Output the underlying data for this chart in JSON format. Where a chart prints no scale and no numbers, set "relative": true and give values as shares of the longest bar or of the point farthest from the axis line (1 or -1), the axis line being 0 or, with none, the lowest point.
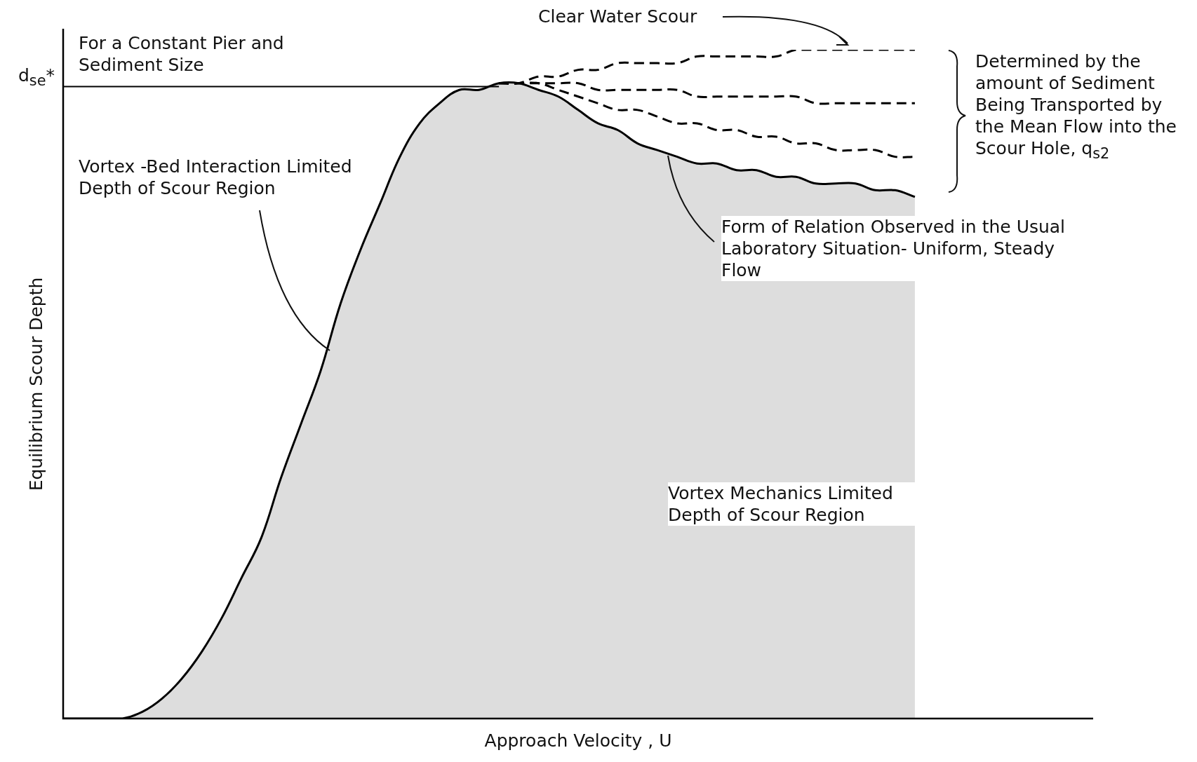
{
  "chart_data": {
    "type": "line",
    "relative": true,
    "legend": false,
    "grid": false,
    "marker": "none",
    "xlabel": "Approach Velocity , U",
    "ylabel": "Equilibrium Scour Depth",
    "categories": [
      null,
      null,
      null,
      null,
      null,
      null,
      null,
      null,
      null,
      null,
      null,
      null,
      null,
      null,
      null,
      null,
      null,
      null,
      null,
      null,
      null,
      null,
      null,
      null,
      null,
      null,
      null,
      null,
      null,
      null,
      null,
      null,
      null,
      null,
      null,
      null,
      null,
      null,
      null,
      null,
      null,
      null,
      null,
      null,
      null,
      null,
      null,
      null,
      null,
      null,
      null,
      null,
      null
    ],
    "series": [
      {
        "type": "area",
        "color": "#000000",
        "line_style": "solid",
        "values": [
          0,
          0,
          0,
          0,
          0.01,
          0.03,
          0.06,
          0.1,
          0.15,
          0.21,
          0.27,
          0.36,
          0.44,
          0.52,
          0.62,
          0.7,
          0.77,
          0.84,
          0.89,
          0.92,
          0.94,
          0.94,
          0.95,
          0.95,
          0.94,
          0.93,
          0.91,
          0.89,
          0.88,
          0.86,
          0.85,
          0.84,
          0.83,
          0.83,
          0.82,
          0.82,
          0.81,
          0.81,
          0.8,
          0.8,
          0.8,
          0.79,
          0.79,
          0.78,
          null,
          null,
          null,
          null,
          null,
          null,
          null,
          null,
          null
        ]
      },
      {
        "color": "#000000",
        "line_style": "dashed",
        "values": [
          null,
          null,
          null,
          null,
          null,
          null,
          null,
          null,
          null,
          null,
          null,
          null,
          null,
          null,
          null,
          null,
          null,
          null,
          null,
          null,
          null,
          null,
          0.95,
          0.95,
          0.96,
          0.96,
          0.97,
          0.97,
          0.98,
          0.98,
          0.98,
          0.98,
          0.99,
          0.99,
          0.99,
          0.99,
          0.99,
          1,
          1,
          1,
          1,
          1,
          1,
          1,
          null,
          null,
          null,
          null,
          null,
          null,
          null,
          null,
          null
        ]
      },
      {
        "color": "#000000",
        "line_style": "dashed",
        "values": [
          null,
          null,
          null,
          null,
          null,
          null,
          null,
          null,
          null,
          null,
          null,
          null,
          null,
          null,
          null,
          null,
          null,
          null,
          null,
          null,
          null,
          null,
          0.95,
          0.95,
          0.95,
          0.95,
          0.95,
          0.94,
          0.94,
          0.94,
          0.94,
          0.94,
          0.93,
          0.93,
          0.93,
          0.93,
          0.93,
          0.93,
          0.92,
          0.92,
          0.92,
          0.92,
          0.92,
          0.92,
          null,
          null,
          null,
          null,
          null,
          null,
          null,
          null,
          null
        ]
      },
      {
        "color": "#000000",
        "line_style": "dashed",
        "values": [
          null,
          null,
          null,
          null,
          null,
          null,
          null,
          null,
          null,
          null,
          null,
          null,
          null,
          null,
          null,
          null,
          null,
          null,
          null,
          null,
          null,
          null,
          0.95,
          0.95,
          0.95,
          0.94,
          0.93,
          0.92,
          0.91,
          0.91,
          0.9,
          0.89,
          0.89,
          0.88,
          0.88,
          0.87,
          0.87,
          0.86,
          0.86,
          0.85,
          0.85,
          0.85,
          0.84,
          0.84,
          null,
          null,
          null,
          null,
          null,
          null,
          null,
          null,
          null
        ]
      }
    ],
    "ref_lines": [
      {
        "axis": "y",
        "value": 0.945,
        "label": "d$_{se}$*"
      }
    ],
    "annotations": [
      "Clear Water Scour",
      "For a Constant Pier and Sediment Size",
      "Vortex -Bed Interaction Limited Depth of Scour Region",
      "Determined by the amount of Sediment Being Transported by the Mean Flow into the Scour Hole, q$_{s2}$",
      "Form of Relation Observed in the Usual Laboratory Situation- Uniform, Steady Flow",
      "Vortex Mechanics Limited Depth of Scour Region"
    ]
  }
}
